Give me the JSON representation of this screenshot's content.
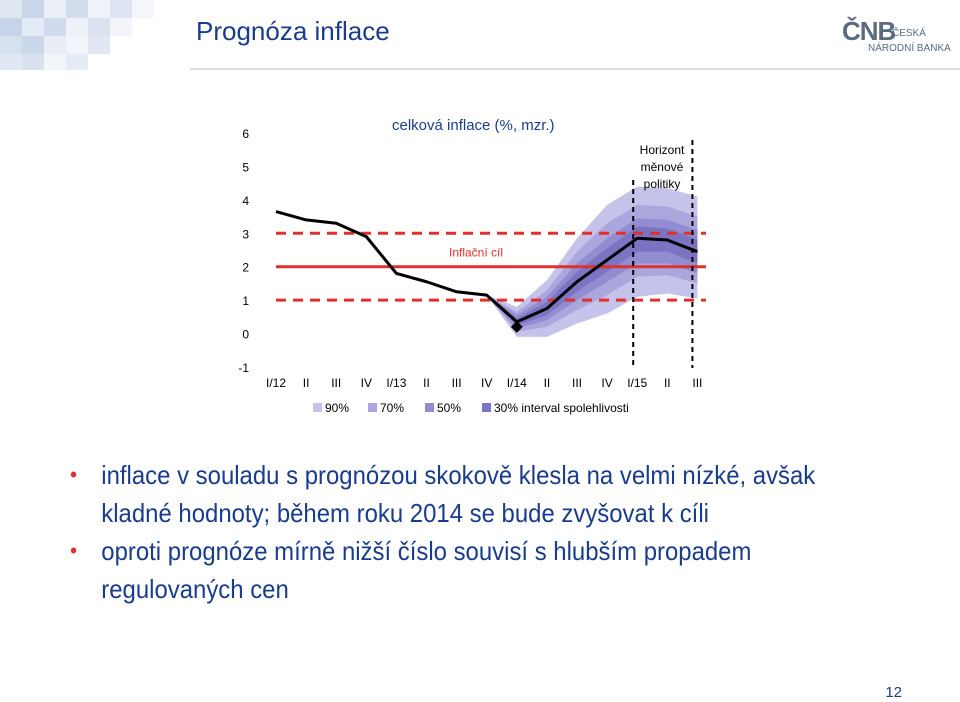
{
  "header": {
    "title": "Prognóza inflace",
    "logo_big": "ČNB",
    "logo_line1": "ČESKÁ",
    "logo_line2": "NÁRODNÍ BANKA"
  },
  "chart_data": {
    "type": "line",
    "title": "celková inflace (%, mzr.)",
    "x": [
      "I/12",
      "II",
      "III",
      "IV",
      "I/13",
      "II",
      "III",
      "IV",
      "I/14",
      "II",
      "III",
      "IV",
      "I/15",
      "II",
      "III"
    ],
    "ylim": [
      -1,
      6
    ],
    "yticks": [
      -1,
      0,
      1,
      2,
      3,
      4,
      5,
      6
    ],
    "series": [
      {
        "values": [
          3.65,
          3.4,
          3.3,
          2.9,
          1.8,
          1.55,
          1.25,
          1.15,
          0.35,
          0.75,
          1.55,
          2.2,
          2.85,
          2.8,
          2.45
        ]
      }
    ],
    "actual_point": {
      "x": "I/14",
      "value": 0.2
    },
    "fan_x": [
      "IV",
      "I/14",
      "II",
      "III",
      "IV",
      "I/15",
      "II",
      "III"
    ],
    "fan_bands": {
      "90%": {
        "low": [
          1.15,
          -0.1,
          -0.1,
          0.3,
          0.6,
          1.1,
          1.2,
          1.05
        ],
        "high": [
          1.15,
          0.8,
          1.6,
          2.85,
          3.85,
          4.4,
          4.35,
          4.1
        ]
      },
      "70%": {
        "low": [
          1.15,
          0.05,
          0.2,
          0.7,
          1.15,
          1.7,
          1.75,
          1.5
        ],
        "high": [
          1.15,
          0.65,
          1.3,
          2.45,
          3.3,
          3.85,
          3.8,
          3.5
        ]
      },
      "50%": {
        "low": [
          1.15,
          0.15,
          0.4,
          1.0,
          1.55,
          2.1,
          2.1,
          1.8
        ],
        "high": [
          1.15,
          0.55,
          1.1,
          2.1,
          2.85,
          3.45,
          3.4,
          3.1
        ]
      },
      "30%": {
        "low": [
          1.15,
          0.25,
          0.55,
          1.25,
          1.85,
          2.45,
          2.45,
          2.1
        ],
        "high": [
          1.15,
          0.45,
          0.95,
          1.85,
          2.55,
          3.2,
          3.15,
          2.8
        ]
      }
    },
    "target": {
      "label": "Inflační cíl",
      "value": 2,
      "band_low": 1,
      "band_high": 3
    },
    "horizon": {
      "label_lines": [
        "Horizont",
        "měnové",
        "politiky"
      ],
      "from": "I/15",
      "to": "III"
    },
    "legend": [
      "90%",
      "70%",
      "50%",
      "30% interval spolehlivosti"
    ],
    "colors": {
      "line": "#000000",
      "target": "#e0302f",
      "band_90": "#c6c3ea",
      "band_70": "#aba7dd",
      "band_50": "#928dd0",
      "band_30": "#7a74c2",
      "title_text": "#1a3c8c"
    }
  },
  "bullets": [
    "inflace v souladu s prognózou skokově klesla na velmi nízké, avšak kladné hodnoty; během roku 2014 se bude zvyšovat k cíli",
    "oproti prognóze mírně nižší číslo souvisí s hlubším propadem regulovaných cen"
  ],
  "page_number": "12"
}
